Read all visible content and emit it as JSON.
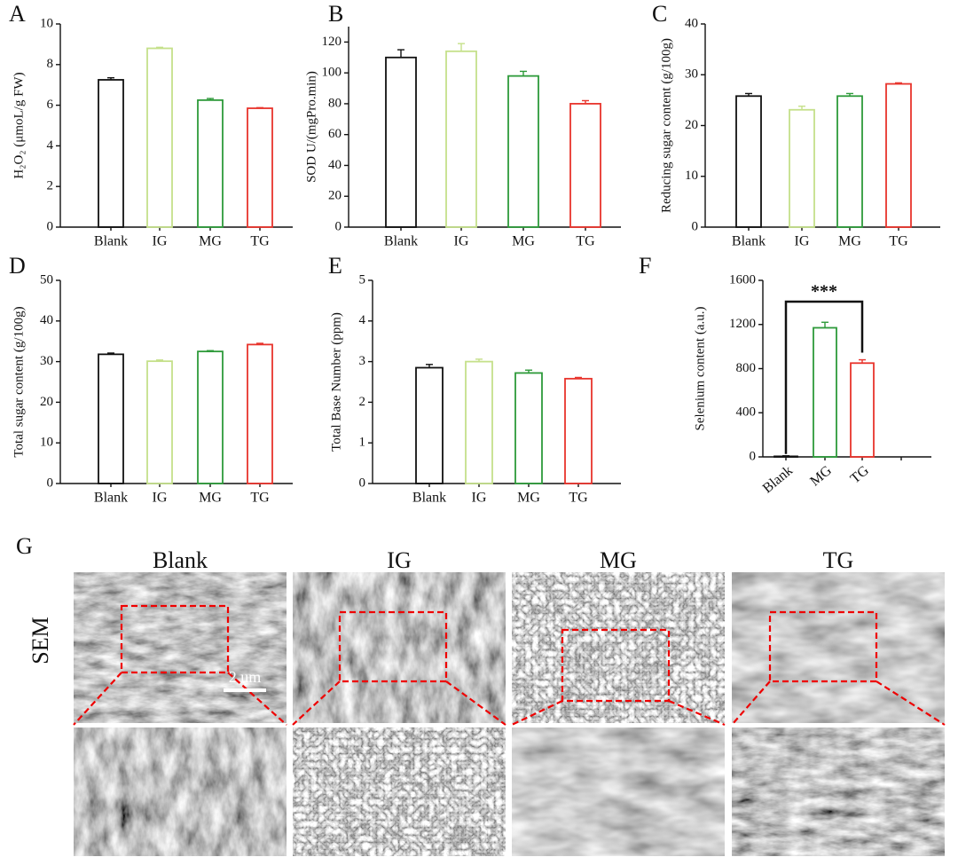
{
  "chart_data": [
    {
      "type": "bar",
      "panel": "A",
      "ylabel": "H₂O₂ (μmoL/g FW)",
      "categories": [
        "Blank",
        "IG",
        "MG",
        "TG"
      ],
      "values": [
        7.25,
        8.8,
        6.25,
        5.85
      ],
      "errors": [
        0.1,
        0.05,
        0.08,
        0.03
      ],
      "colors": [
        "#111111",
        "#c5e08a",
        "#2e9a3a",
        "#e8342c"
      ],
      "ylim": [
        0,
        10
      ],
      "yticks": [
        0,
        2,
        4,
        6,
        8,
        10
      ]
    },
    {
      "type": "bar",
      "panel": "B",
      "ylabel": "SOD U/(mgPro.min)",
      "categories": [
        "Blank",
        "IG",
        "MG",
        "TG"
      ],
      "values": [
        110,
        114,
        98,
        80
      ],
      "errors": [
        5,
        5,
        3,
        2
      ],
      "colors": [
        "#111111",
        "#c5e08a",
        "#2e9a3a",
        "#e8342c"
      ],
      "ylim": [
        0,
        130
      ],
      "yticks": [
        0,
        20,
        40,
        60,
        80,
        100,
        120
      ]
    },
    {
      "type": "bar",
      "panel": "C",
      "ylabel": "Reducing sugar content (g/100g)",
      "categories": [
        "Blank",
        "IG",
        "MG",
        "TG"
      ],
      "values": [
        25.8,
        23.1,
        25.8,
        28.2
      ],
      "errors": [
        0.5,
        0.7,
        0.5,
        0.2
      ],
      "colors": [
        "#111111",
        "#c5e08a",
        "#2e9a3a",
        "#e8342c"
      ],
      "ylim": [
        0,
        40
      ],
      "yticks": [
        0,
        10,
        20,
        30,
        40
      ]
    },
    {
      "type": "bar",
      "panel": "D",
      "ylabel": "Total sugar content (g/100g)",
      "categories": [
        "Blank",
        "IG",
        "MG",
        "TG"
      ],
      "values": [
        31.8,
        30.1,
        32.5,
        34.2
      ],
      "errors": [
        0.3,
        0.3,
        0.2,
        0.3
      ],
      "colors": [
        "#111111",
        "#c5e08a",
        "#2e9a3a",
        "#e8342c"
      ],
      "ylim": [
        0,
        50
      ],
      "yticks": [
        0,
        10,
        20,
        30,
        40,
        50
      ]
    },
    {
      "type": "bar",
      "panel": "E",
      "ylabel": "Total Base Number (ppm)",
      "categories": [
        "Blank",
        "IG",
        "MG",
        "TG"
      ],
      "values": [
        2.85,
        3.0,
        2.72,
        2.58
      ],
      "errors": [
        0.08,
        0.06,
        0.07,
        0.03
      ],
      "colors": [
        "#111111",
        "#c5e08a",
        "#2e9a3a",
        "#e8342c"
      ],
      "ylim": [
        0,
        5
      ],
      "yticks": [
        0,
        1,
        2,
        3,
        4,
        5
      ]
    },
    {
      "type": "bar",
      "panel": "F",
      "ylabel": "Selenium content (a.u.)",
      "categories": [
        "Blank",
        "MG",
        "TG"
      ],
      "values": [
        5,
        1170,
        850
      ],
      "errors": [
        5,
        50,
        30
      ],
      "colors": [
        "#111111",
        "#2e9a3a",
        "#e8342c"
      ],
      "ylim": [
        0,
        1600
      ],
      "yticks": [
        0,
        400,
        800,
        1200,
        1600
      ],
      "annotation": "***"
    }
  ],
  "sem_panel": {
    "label": "G",
    "row_label": "SEM",
    "columns": [
      "Blank",
      "IG",
      "MG",
      "TG"
    ],
    "scale_bar": "2 um"
  }
}
